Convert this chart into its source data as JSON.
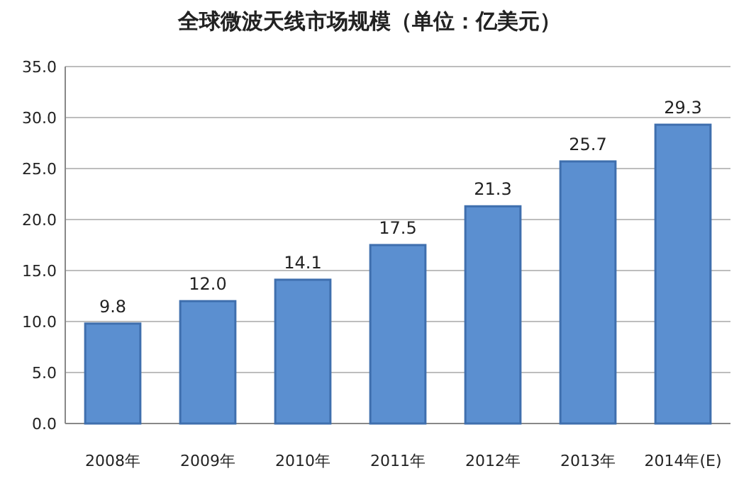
{
  "chart_data": {
    "type": "bar",
    "title": "全球微波天线市场规模（单位：亿美元）",
    "categories": [
      "2008年",
      "2009年",
      "2010年",
      "2011年",
      "2012年",
      "2013年",
      "2014年(E)"
    ],
    "values": [
      9.8,
      12.0,
      14.1,
      17.5,
      21.3,
      25.7,
      29.3
    ],
    "value_labels": [
      "9.8",
      "12.0",
      "14.1",
      "17.5",
      "21.3",
      "25.7",
      "29.3"
    ],
    "color": "#5b8fd0",
    "ylim": [
      0,
      35
    ],
    "yticks": [
      {
        "value": 0,
        "label": "0.0"
      },
      {
        "value": 5,
        "label": "5.0"
      },
      {
        "value": 10,
        "label": "10.0"
      },
      {
        "value": 15,
        "label": "15.0"
      },
      {
        "value": 20,
        "label": "20.0"
      },
      {
        "value": 25,
        "label": "25.0"
      },
      {
        "value": 30,
        "label": "30.0"
      },
      {
        "value": 35,
        "label": "35.0"
      }
    ],
    "grid": "y"
  }
}
